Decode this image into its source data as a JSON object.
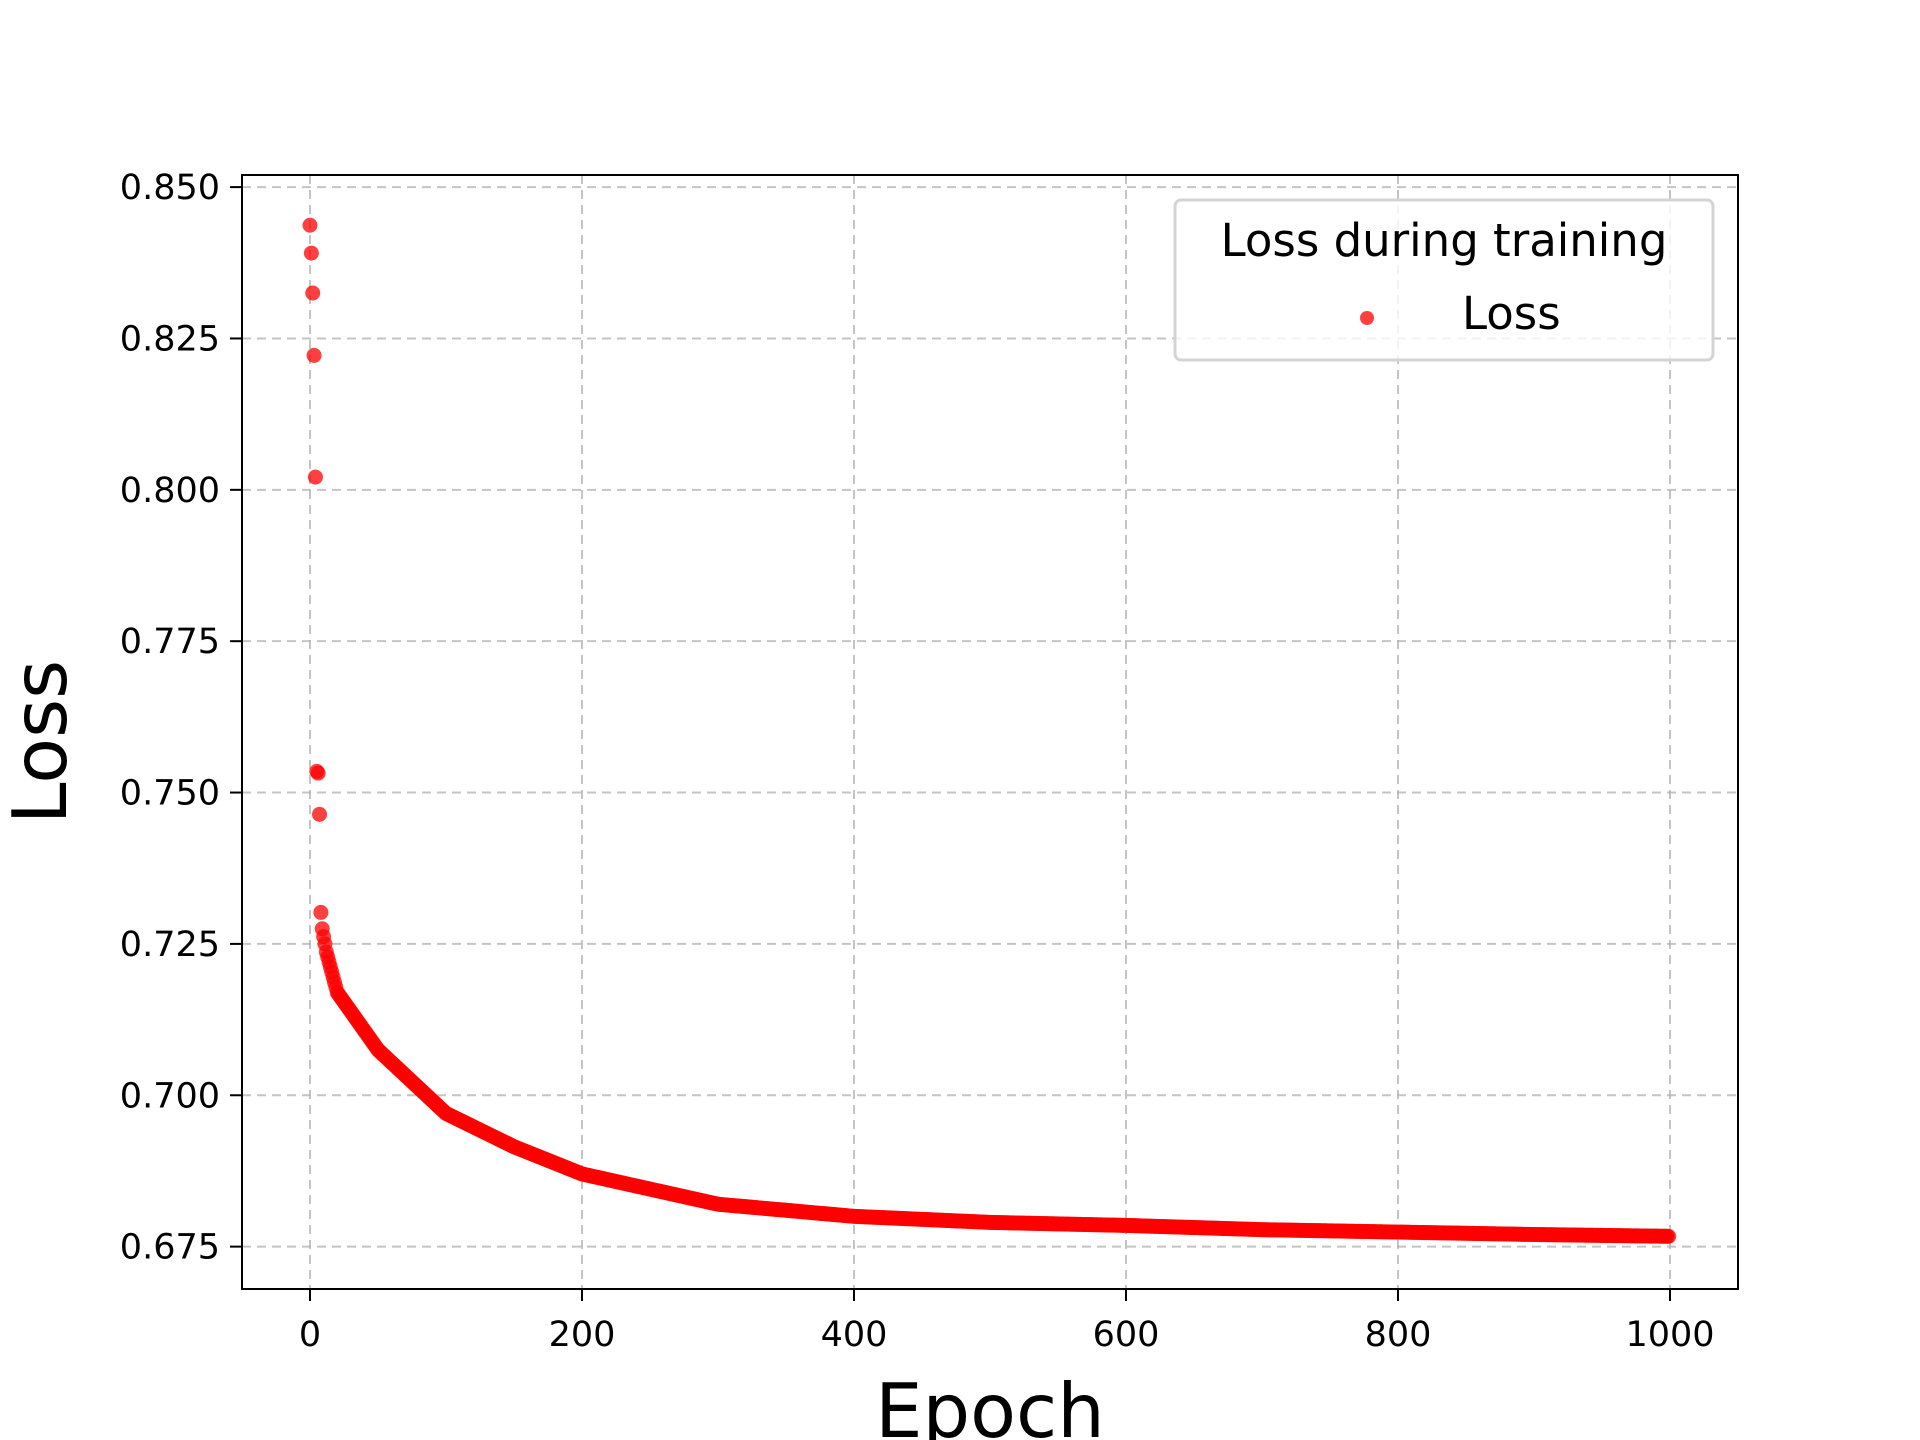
{
  "chart_data": {
    "type": "scatter",
    "xlabel": "Epoch",
    "ylabel": "Loss",
    "xlim": [
      -50,
      1050
    ],
    "ylim": [
      0.668,
      0.852
    ],
    "x_ticks": [
      0,
      200,
      400,
      600,
      800,
      1000
    ],
    "y_ticks": [
      0.675,
      0.7,
      0.725,
      0.75,
      0.775,
      0.8,
      0.825,
      0.85
    ],
    "x_tick_labels": [
      "0",
      "200",
      "400",
      "600",
      "800",
      "1000"
    ],
    "y_tick_labels": [
      "0.675",
      "0.700",
      "0.725",
      "0.750",
      "0.775",
      "0.800",
      "0.825",
      "0.850"
    ],
    "grid": true,
    "legend": {
      "title": "Loss during training",
      "placement": "top-right"
    },
    "series": [
      {
        "name": "Loss",
        "color": "#ff0000",
        "x_range": [
          0,
          999
        ],
        "initial_values": [
          0.8437,
          0.8391,
          0.8325,
          0.8222,
          0.8021,
          0.7535,
          0.7532,
          0.7464,
          0.7302,
          0.7275,
          0.7262,
          0.725
        ],
        "sampled_curve": [
          {
            "x": 11,
            "y": 0.7245
          },
          {
            "x": 20,
            "y": 0.717
          },
          {
            "x": 50,
            "y": 0.7075
          },
          {
            "x": 100,
            "y": 0.697
          },
          {
            "x": 150,
            "y": 0.6915
          },
          {
            "x": 200,
            "y": 0.687
          },
          {
            "x": 300,
            "y": 0.682
          },
          {
            "x": 400,
            "y": 0.68
          },
          {
            "x": 500,
            "y": 0.679
          },
          {
            "x": 600,
            "y": 0.6785
          },
          {
            "x": 700,
            "y": 0.6778
          },
          {
            "x": 800,
            "y": 0.6774
          },
          {
            "x": 900,
            "y": 0.677
          },
          {
            "x": 999,
            "y": 0.6767
          }
        ]
      }
    ]
  }
}
